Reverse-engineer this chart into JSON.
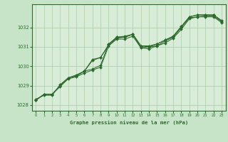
{
  "title": "Graphe pression niveau de la mer (hPa)",
  "xlabel": "Graphe pression niveau de la mer (hPa)",
  "x_ticks": [
    0,
    1,
    2,
    3,
    4,
    5,
    6,
    7,
    8,
    9,
    10,
    11,
    12,
    13,
    14,
    15,
    16,
    17,
    18,
    19,
    20,
    21,
    22,
    23
  ],
  "ylim": [
    1027.7,
    1033.2
  ],
  "xlim": [
    -0.5,
    23.5
  ],
  "yticks": [
    1028,
    1029,
    1030,
    1031,
    1032
  ],
  "bg_color": "#c8e4c8",
  "plot_bg": "#d8ecd8",
  "line_color": "#2d6a2d",
  "grid_color": "#a8cca8",
  "series1": [
    1028.25,
    1028.55,
    1028.55,
    1029.0,
    1029.4,
    1029.5,
    1029.75,
    1029.85,
    1030.05,
    1031.15,
    1031.5,
    1031.5,
    1031.65,
    1031.05,
    1031.0,
    1031.15,
    1031.35,
    1031.55,
    1032.05,
    1032.55,
    1032.65,
    1032.65,
    1032.65,
    1032.35
  ],
  "series2": [
    1028.25,
    1028.55,
    1028.55,
    1028.95,
    1029.35,
    1029.45,
    1029.65,
    1029.8,
    1029.95,
    1031.05,
    1031.4,
    1031.4,
    1031.55,
    1030.95,
    1030.9,
    1031.05,
    1031.2,
    1031.45,
    1031.9,
    1032.45,
    1032.55,
    1032.55,
    1032.55,
    1032.25
  ],
  "series3": [
    1028.25,
    1028.55,
    1028.55,
    1029.0,
    1029.4,
    1029.5,
    1029.75,
    1030.3,
    1030.45,
    1031.1,
    1031.45,
    1031.5,
    1031.65,
    1030.95,
    1031.0,
    1031.05,
    1031.3,
    1031.5,
    1032.0,
    1032.5,
    1032.55,
    1032.6,
    1032.6,
    1032.3
  ],
  "series4": [
    1028.3,
    1028.5,
    1028.5,
    1029.05,
    1029.4,
    1029.55,
    1029.75,
    1030.35,
    1030.45,
    1031.1,
    1031.5,
    1031.55,
    1031.65,
    1031.05,
    1031.05,
    1031.15,
    1031.35,
    1031.55,
    1032.05,
    1032.55,
    1032.65,
    1032.65,
    1032.65,
    1032.35
  ]
}
